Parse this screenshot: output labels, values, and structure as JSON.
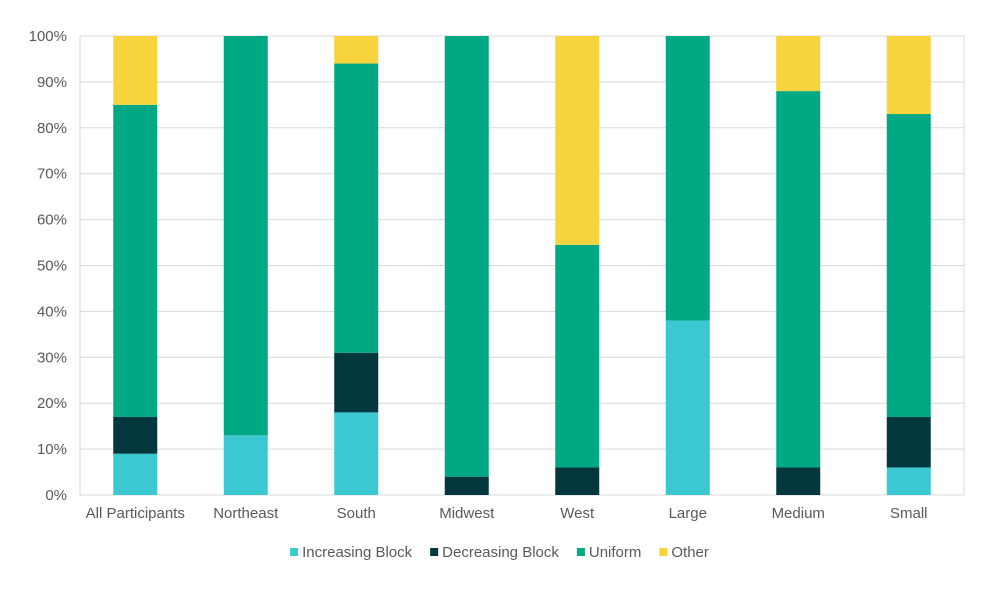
{
  "chart_data": {
    "type": "bar",
    "stacked": true,
    "categories": [
      "All Participants",
      "Northeast",
      "South",
      "Midwest",
      "West",
      "Large",
      "Medium",
      "Small"
    ],
    "series": [
      {
        "name": "Increasing Block",
        "color": "#3CC8D2",
        "values": [
          9,
          13,
          18,
          0,
          0,
          38,
          0,
          6
        ]
      },
      {
        "name": "Decreasing Block",
        "color": "#02373D",
        "values": [
          8,
          0,
          13,
          4,
          6,
          0,
          6,
          11
        ]
      },
      {
        "name": "Uniform",
        "color": "#00A884",
        "values": [
          68,
          87,
          63,
          96,
          48.5,
          62,
          82,
          66
        ]
      },
      {
        "name": "Other",
        "color": "#F7D33E",
        "values": [
          15,
          0,
          6,
          0,
          45.5,
          0,
          12,
          17
        ]
      }
    ],
    "ylim": [
      0,
      100
    ],
    "yticks": [
      "0%",
      "10%",
      "20%",
      "30%",
      "40%",
      "50%",
      "60%",
      "70%",
      "80%",
      "90%",
      "100%"
    ],
    "grid": true,
    "legend_position": "bottom"
  }
}
